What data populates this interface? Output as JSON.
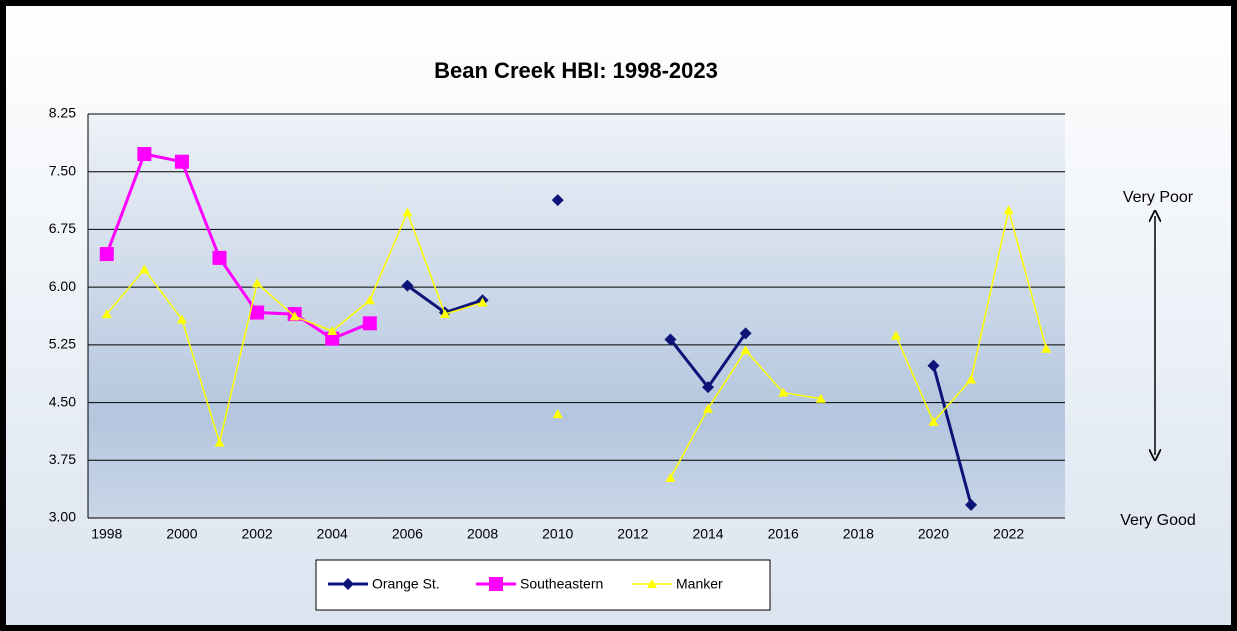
{
  "chart_data": {
    "type": "line",
    "title": "Bean Creek HBI: 1998-2023",
    "categories": [
      "1998",
      null,
      "2000",
      null,
      "2002",
      null,
      "2004",
      null,
      "2006",
      null,
      "2008",
      null,
      "2010",
      null,
      "2012",
      null,
      "2014",
      null,
      "2016",
      null,
      "2018",
      null,
      "2020",
      null,
      "2022",
      null
    ],
    "series": [
      {
        "name": "Orange St.",
        "color": "#0d1478",
        "marker": "diamond",
        "values": [
          null,
          null,
          null,
          null,
          null,
          null,
          null,
          null,
          6.02,
          5.67,
          5.83,
          null,
          7.13,
          null,
          null,
          5.32,
          4.7,
          5.4,
          null,
          null,
          null,
          null,
          4.98,
          3.17,
          null,
          null
        ]
      },
      {
        "name": "Southeastern",
        "color": "#ff00ff",
        "marker": "square",
        "values": [
          6.43,
          7.73,
          7.63,
          6.38,
          5.67,
          5.65,
          5.33,
          5.53,
          null,
          null,
          null,
          null,
          null,
          null,
          null,
          null,
          null,
          null,
          null,
          null,
          null,
          null,
          null,
          null,
          null,
          null
        ]
      },
      {
        "name": "Manker",
        "color": "#ffff00",
        "marker": "triangle",
        "values": [
          5.65,
          6.23,
          5.58,
          3.98,
          6.05,
          5.62,
          5.43,
          5.83,
          6.97,
          5.65,
          5.8,
          null,
          4.35,
          null,
          null,
          3.52,
          4.42,
          5.18,
          4.63,
          4.55,
          null,
          5.37,
          4.25,
          4.8,
          7.0,
          5.2
        ]
      }
    ],
    "ylim": [
      3,
      8.25
    ],
    "yticks": [
      {
        "value": 3,
        "label": "3.00"
      },
      {
        "value": 3.75,
        "label": "3.75"
      },
      {
        "value": 4.5,
        "label": "4.50"
      },
      {
        "value": 5.25,
        "label": "5.25"
      },
      {
        "value": 6,
        "label": "6.00"
      },
      {
        "value": 6.75,
        "label": "6.75"
      },
      {
        "value": 7.5,
        "label": "7.50"
      },
      {
        "value": 8.25,
        "label": "8.25"
      }
    ],
    "grid": true,
    "legend": "bottom",
    "annotations": [
      "Very Poor",
      "Very Good"
    ]
  }
}
